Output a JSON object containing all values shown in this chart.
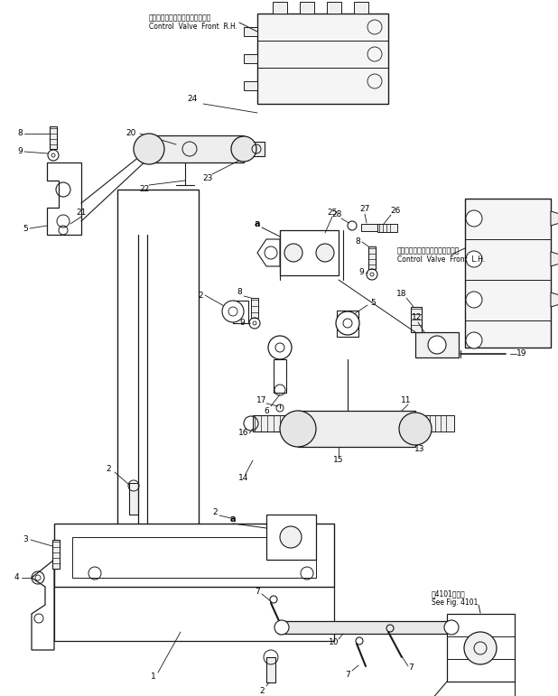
{
  "background_color": "#ffffff",
  "line_color": "#1a1a1a",
  "figsize": [
    6.18,
    7.71
  ],
  "dpi": 100,
  "labels": {
    "top_right_jp": "コントロールバルブフロント　右",
    "top_right_en": "Control  Valve  Front  R.H.",
    "mid_right_jp": "コントロールバルブフロント　左",
    "mid_right_en": "Control  Valve  Front  L.H.",
    "bottom_right_jp": "第4101図参照",
    "bottom_right_en": "See Fig. 4101"
  }
}
